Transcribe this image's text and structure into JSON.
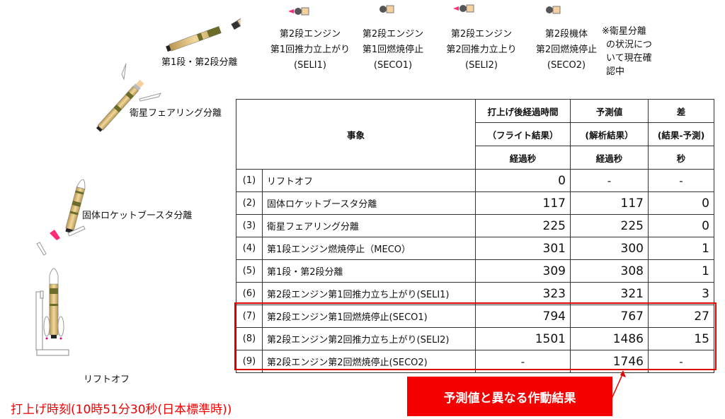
{
  "stages": {
    "liftoff": "リフトオフ",
    "srb_sep": "固体ロケットブースタ分離",
    "fairing_sep": "衛星フェアリング分離",
    "stage_sep": "第1段・第2段分離",
    "seli1": [
      "第2段エンジン",
      "第1回推力立上がり",
      "(SELI1)"
    ],
    "seco1": [
      "第2段エンジン",
      "第1回燃焼停止",
      "(SECO1)"
    ],
    "seli2": [
      "第2段エンジン",
      "第2回推力立上り",
      "(SELI2)"
    ],
    "seco2": [
      "第2段機体",
      "第2回燃焼停止",
      "(SECO2)"
    ],
    "note": [
      "※衛星分離",
      "の状況につ",
      "いて現在確",
      "認中"
    ]
  },
  "launch_time": "打上げ時刻(10時51分30秒(日本標準時))",
  "table": {
    "header": {
      "event": "事象",
      "flight": [
        "打上げ後経過時間",
        "（フライト結果）",
        "経過秒"
      ],
      "predicted": [
        "予測値",
        "(解析結果）",
        "経過秒"
      ],
      "diff": [
        "差",
        "(結果-予測)",
        "秒"
      ]
    },
    "rows": [
      {
        "idx": "(1)",
        "event": "リフトオフ",
        "flight": "0",
        "predicted": "-",
        "diff": "-"
      },
      {
        "idx": "(2)",
        "event": "固体ロケットブースタ分離",
        "flight": "117",
        "predicted": "117",
        "diff": "0"
      },
      {
        "idx": "(3)",
        "event": "衛星フェアリング分離",
        "flight": "225",
        "predicted": "225",
        "diff": "0"
      },
      {
        "idx": "(4)",
        "event": "第1段エンジン燃焼停止（MECO）",
        "flight": "301",
        "predicted": "300",
        "diff": "1"
      },
      {
        "idx": "(5)",
        "event": "第1段・第2段分離",
        "flight": "309",
        "predicted": "308",
        "diff": "1"
      },
      {
        "idx": "(6)",
        "event": "第2段エンジン第1回推力立ち上がり(SELI1)",
        "flight": "323",
        "predicted": "321",
        "diff": "3"
      },
      {
        "idx": "(7)",
        "event": "第2段エンジン第1回燃焼停止(SECO1)",
        "flight": "794",
        "predicted": "767",
        "diff": "27"
      },
      {
        "idx": "(8)",
        "event": "第2段エンジン第2回推力立ち上がり(SELI2)",
        "flight": "1501",
        "predicted": "1486",
        "diff": "15"
      },
      {
        "idx": "(9)",
        "event": "第2段エンジン第2回燃焼停止(SECO2)",
        "flight": "-",
        "predicted": "1746",
        "diff": "-"
      }
    ]
  },
  "callout": "予測値と異なる作動結果",
  "colors": {
    "highlight": "#e00000",
    "callout_bg": "#f40000",
    "rocket_body": "#e3c27e",
    "rocket_band": "#6b6b2a",
    "plume": "#ff2a7a"
  }
}
